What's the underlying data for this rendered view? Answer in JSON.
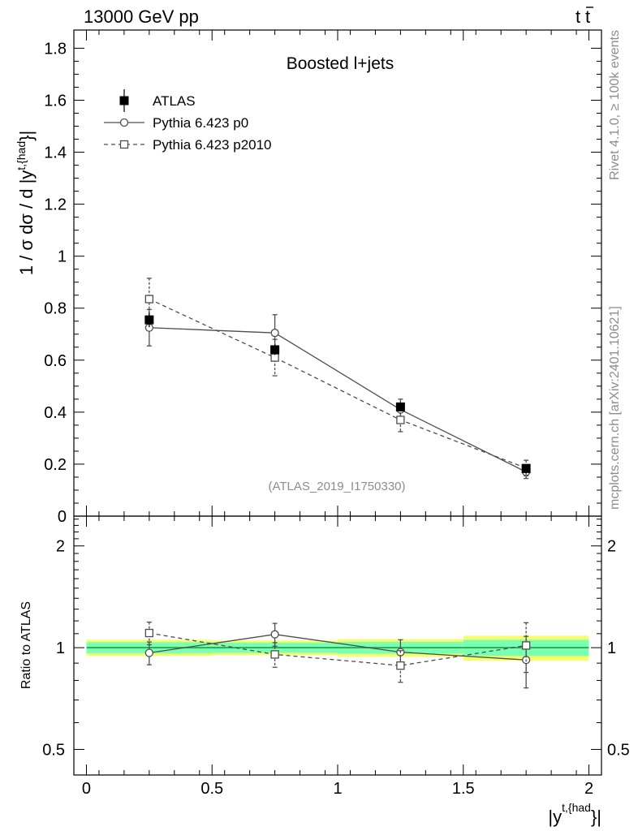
{
  "header": {
    "left": "13000 GeV pp",
    "right_prefix": "t",
    "right_bar": "t"
  },
  "side_text": {
    "rivet": "Rivet 4.1.0, ≥ 100k events",
    "mcplots": "mcplots.cern.ch [arXiv:2401.10621]"
  },
  "colors": {
    "data": "#000000",
    "mc": "#4d4d4d",
    "band_inner": "#7bffb0",
    "band_outer": "#f4ff6e",
    "ratio_line": "#1a9e4e",
    "watermark": "#8c8c8c"
  },
  "chart_data": [
    {
      "panel": "main",
      "type": "scatter",
      "title": "Boosted l+jets",
      "annotation": "(ATLAS_2019_I1750330)",
      "ylabel": "1 / σ dσ / d |y^{t,{had}}|",
      "ylabel_main": "1 / σ dσ / d |y",
      "ylabel_sup": "t,{had",
      "ylabel_end": "}|",
      "xlim": [
        -0.05,
        2.05
      ],
      "ylim": [
        0,
        1.87
      ],
      "y_ticks": [
        0,
        0.2,
        0.4,
        0.6,
        0.8,
        1,
        1.2,
        1.4,
        1.6,
        1.8
      ],
      "y_tick_labels": [
        "0",
        "0.2",
        "0.4",
        "0.6",
        "0.8",
        "1",
        "1.2",
        "1.4",
        "1.6",
        "1.8"
      ],
      "legend_position": "top-left",
      "series": [
        {
          "name": "ATLAS",
          "style": "filled-square",
          "x": [
            0.25,
            0.75,
            1.25,
            1.75
          ],
          "y": [
            0.755,
            0.64,
            0.42,
            0.183
          ],
          "yerr": [
            0.028,
            0.02,
            0.016,
            0.01
          ]
        },
        {
          "name": "Pythia 6.423 p0",
          "style": "open-circle-solid",
          "x": [
            0.25,
            0.75,
            1.25,
            1.75
          ],
          "y": [
            0.725,
            0.705,
            0.41,
            0.17
          ],
          "yerr": [
            0.07,
            0.07,
            0.04,
            0.025
          ]
        },
        {
          "name": "Pythia 6.423 p2010",
          "style": "open-square-dashed",
          "x": [
            0.25,
            0.75,
            1.25,
            1.75
          ],
          "y": [
            0.835,
            0.61,
            0.37,
            0.185
          ],
          "yerr": [
            0.08,
            0.07,
            0.045,
            0.03
          ]
        }
      ]
    },
    {
      "panel": "ratio",
      "type": "scatter",
      "ylabel": "Ratio to ATLAS",
      "xlabel": "|y^{t,{had}}|",
      "xlabel_main": "|y",
      "xlabel_sup": "t,{had",
      "xlabel_end": "}|",
      "xlim": [
        -0.05,
        2.05
      ],
      "ylim": [
        0.42,
        2.45
      ],
      "log_y": true,
      "x_ticks": [
        0,
        0.5,
        1,
        1.5,
        2
      ],
      "x_tick_labels": [
        "0",
        "0.5",
        "1",
        "1.5",
        "2"
      ],
      "y_ticks": [
        0.5,
        1,
        2
      ],
      "y_tick_labels": [
        "0.5",
        "1",
        "2"
      ],
      "reference_band": {
        "x_edges": [
          0,
          0.5,
          1,
          1.5,
          2
        ],
        "inner": [
          0.038,
          0.035,
          0.04,
          0.055
        ],
        "outer": [
          0.055,
          0.05,
          0.06,
          0.085
        ]
      },
      "series": [
        {
          "name": "Pythia 6.423 p0",
          "style": "open-circle-solid",
          "x": [
            0.25,
            0.75,
            1.25,
            1.75
          ],
          "y": [
            0.965,
            1.095,
            0.97,
            0.92
          ],
          "yerr": [
            0.075,
            0.085,
            0.085,
            0.16
          ]
        },
        {
          "name": "Pythia 6.423 p2010",
          "style": "open-square-dashed",
          "x": [
            0.25,
            0.75,
            1.25,
            1.75
          ],
          "y": [
            1.105,
            0.955,
            0.885,
            1.015
          ],
          "yerr": [
            0.085,
            0.08,
            0.095,
            0.17
          ]
        }
      ]
    }
  ]
}
